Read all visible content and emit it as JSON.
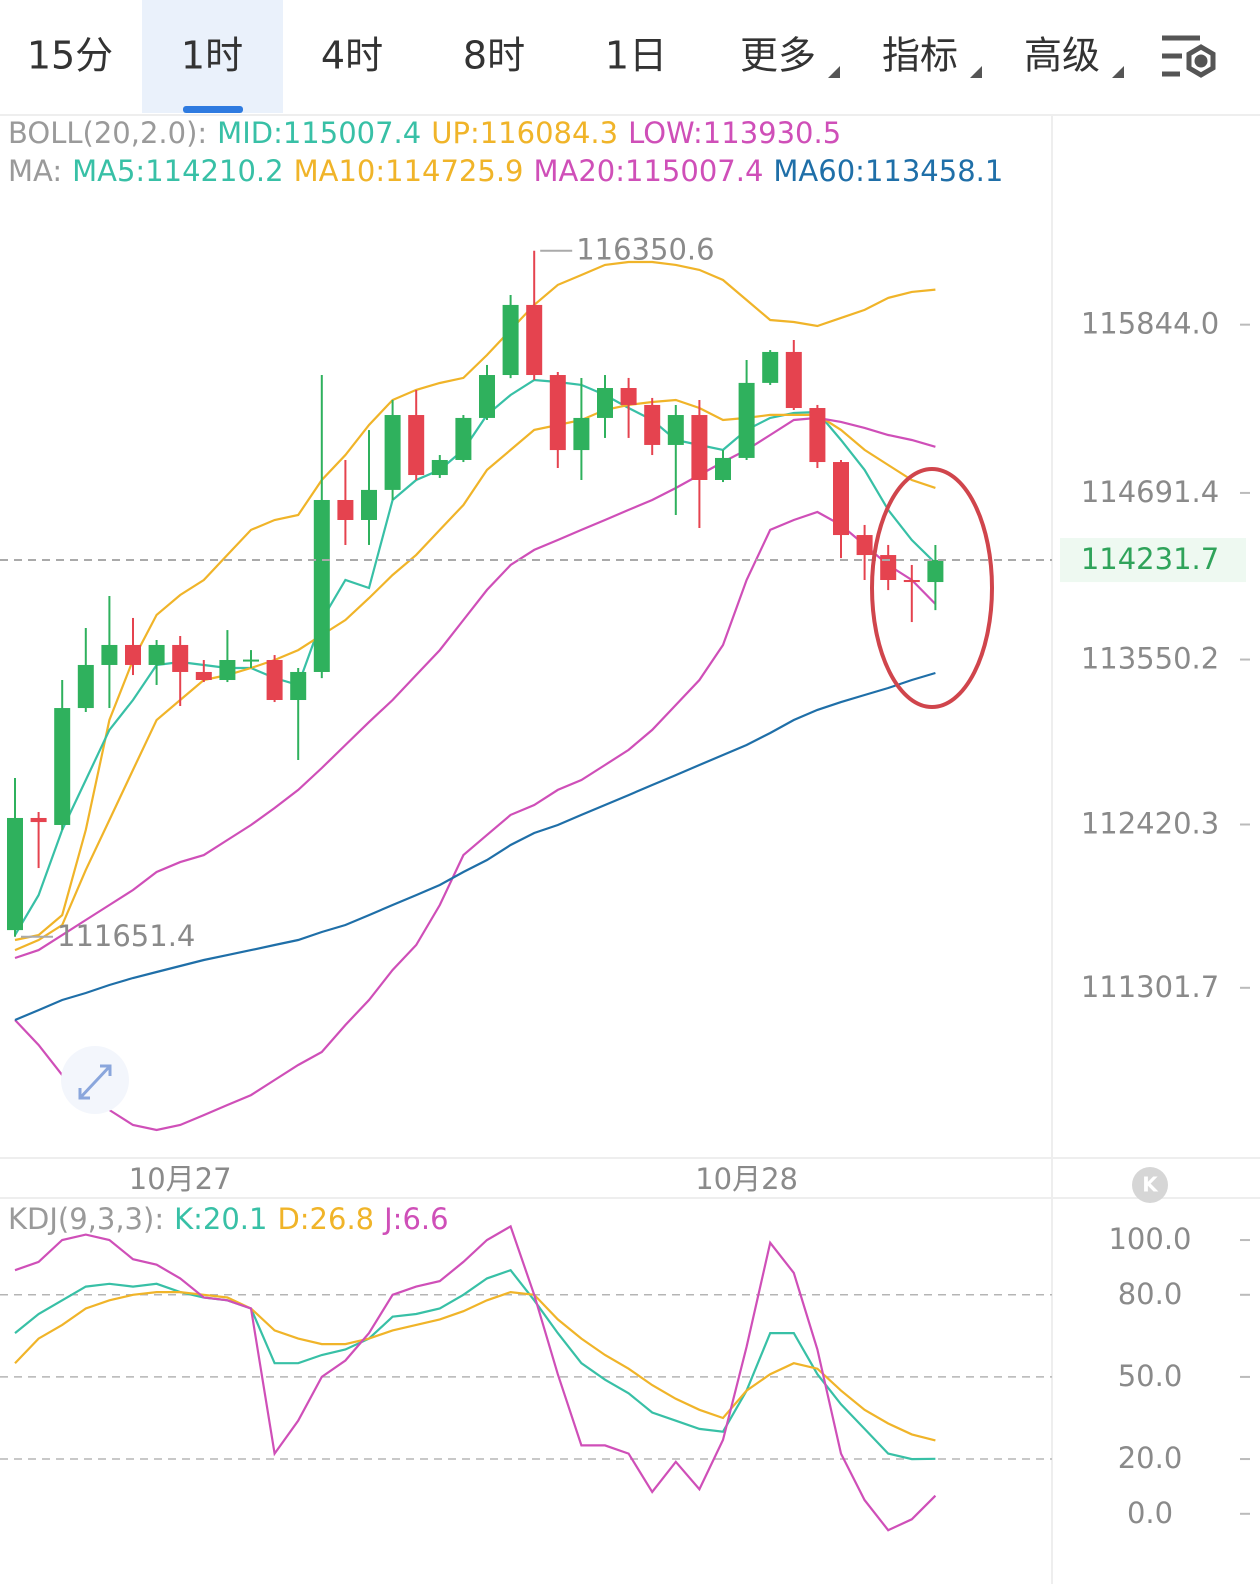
{
  "tabs": [
    {
      "label": "15分"
    },
    {
      "label": "1时",
      "selected": true
    },
    {
      "label": "4时"
    },
    {
      "label": "8时"
    },
    {
      "label": "1日"
    },
    {
      "label": "更多",
      "dropdown": true
    },
    {
      "label": "指标",
      "dropdown": true
    },
    {
      "label": "高级",
      "dropdown": true
    }
  ],
  "k_button": "K",
  "chart_data": [
    {
      "type": "candlestick",
      "categories": [
        null,
        null,
        null,
        null,
        null,
        null,
        null,
        "10月27",
        null,
        null,
        null,
        null,
        null,
        null,
        null,
        null,
        null,
        null,
        null,
        null,
        null,
        null,
        null,
        null,
        null,
        null,
        null,
        null,
        null,
        null,
        null,
        "10月28",
        null,
        null,
        null,
        null,
        null,
        null,
        null,
        null
      ],
      "open": [
        111697,
        112465,
        112417,
        113218,
        113513,
        113650,
        113513,
        113650,
        113465,
        113410,
        113540,
        113547,
        113273,
        113465,
        114643,
        114506,
        114712,
        115225,
        114814,
        114917,
        115205,
        115499,
        115979,
        115499,
        114985,
        115205,
        115410,
        115294,
        115020,
        115225,
        114780,
        114931,
        115445,
        115657,
        115273,
        114903,
        114403,
        114266,
        114095,
        114081
      ],
      "high": [
        112739,
        112506,
        113410,
        113766,
        113985,
        113835,
        113684,
        113711,
        113547,
        113752,
        113615,
        113581,
        113492,
        115499,
        114917,
        115122,
        115328,
        115396,
        114951,
        115225,
        115568,
        116047,
        116350.6,
        115520,
        115479,
        115499,
        115479,
        115342,
        115294,
        115328,
        114985,
        115602,
        115670,
        115739,
        115294,
        114917,
        114472,
        114335,
        114198,
        114335
      ],
      "low": [
        111651.4,
        112122,
        112383,
        113191,
        113218,
        113444,
        113376,
        113232,
        113396,
        113396,
        113492,
        113259,
        112862,
        113423,
        114335,
        114335,
        114643,
        114780,
        114794,
        114903,
        115191,
        115478,
        115465,
        114862,
        114780,
        115068,
        115068,
        114951,
        114540,
        114451,
        114766,
        114917,
        115431,
        115259,
        114862,
        114245,
        114095,
        114026,
        113807,
        113889
      ],
      "close": [
        112465,
        112437,
        113218,
        113513,
        113650,
        113513,
        113650,
        113465,
        113410,
        113547,
        113550,
        113273,
        113465,
        114643,
        114506,
        114712,
        115225,
        114814,
        114917,
        115205,
        115499,
        115979,
        115499,
        114985,
        115205,
        115410,
        115294,
        115020,
        115225,
        114780,
        114931,
        115445,
        115657,
        115273,
        114903,
        114403,
        114266,
        114095,
        114081,
        114231.7
      ],
      "up_color": "#2fb15d",
      "down_color": "#e5434f",
      "ylim": [
        110136,
        117280
      ],
      "yticks": [
        {
          "value": 115844,
          "label": "115844.0"
        },
        {
          "value": 114691.4,
          "label": "114691.4"
        },
        {
          "value": 113550.2,
          "label": "113550.2"
        },
        {
          "value": 112420.3,
          "label": "112420.3"
        },
        {
          "value": 111301.7,
          "label": "111301.7"
        }
      ],
      "last_price": {
        "value": 114231.7,
        "label": "114231.7",
        "color": "#2fa35a"
      },
      "annotations": [
        {
          "label": "116350.6",
          "value": 116350.6,
          "index": 22
        },
        {
          "label": "111651.4",
          "value": 111651.4,
          "index": 0
        }
      ],
      "indicators": [
        {
          "label": "BOLL(20,2.0):",
          "items": [
            {
              "name": "MID:115007.4",
              "color": "#38c0a6"
            },
            {
              "name": "UP:116084.3",
              "color": "#f0b429",
              "values": [
                111629,
                111663,
                111800,
                112383,
                113136,
                113547,
                113856,
                113992,
                114095,
                114267,
                114438,
                114506,
                114540,
                114780,
                114951,
                115157,
                115328,
                115397,
                115444,
                115479,
                115636,
                115808,
                115979,
                116116,
                116184,
                116253,
                116273,
                116273,
                116253,
                116219,
                116150,
                116013,
                115876,
                115862,
                115835,
                115890,
                115945,
                116027,
                116068,
                116084.3
              ]
            },
            {
              "name": "LOW:113930.5",
              "color": "#cf4fb8",
              "values": [
                111081,
                110910,
                110704,
                110567,
                110465,
                110362,
                110328,
                110362,
                110430,
                110499,
                110567,
                110670,
                110773,
                110862,
                111047,
                111218,
                111424,
                111595,
                111869,
                112211,
                112349,
                112486,
                112554,
                112657,
                112725,
                112828,
                112931,
                113068,
                113239,
                113410,
                113650,
                114095,
                114438,
                114506,
                114561,
                114472,
                114335,
                114198,
                114095,
                113930.5
              ]
            }
          ]
        },
        {
          "label": "MA:",
          "items": [
            {
              "name": "MA5:114210.2",
              "color": "#38c0a6",
              "values": [
                111663,
                111937,
                112383,
                112725,
                113068,
                113273,
                113513,
                113533,
                113513,
                113492,
                113492,
                113424,
                113376,
                113821,
                114095,
                114040,
                114643,
                114780,
                114849,
                114986,
                115226,
                115362,
                115465,
                115451,
                115431,
                115362,
                115273,
                115191,
                115054,
                115020,
                114986,
                115123,
                115205,
                115239,
                115246,
                115054,
                114849,
                114575,
                114369,
                114210.2
              ]
            },
            {
              "name": "MA10:114725.9",
              "color": "#f0b429",
              "values": [
                111560,
                111629,
                111732,
                112109,
                112451,
                112794,
                113136,
                113273,
                113410,
                113444,
                113492,
                113547,
                113615,
                113718,
                113821,
                113971,
                114129,
                114267,
                114438,
                114609,
                114849,
                114986,
                115123,
                115157,
                115191,
                115260,
                115294,
                115314,
                115328,
                115273,
                115191,
                115205,
                115226,
                115226,
                115226,
                115123,
                114986,
                114883,
                114780,
                114725.9
              ]
            },
            {
              "name": "MA20:115007.4",
              "color": "#cf4fb8",
              "values": [
                111506,
                111560,
                111663,
                111766,
                111869,
                111972,
                112095,
                112163,
                112211,
                112314,
                112417,
                112533,
                112657,
                112807,
                112965,
                113122,
                113273,
                113444,
                113615,
                113821,
                114027,
                114198,
                114301,
                114369,
                114438,
                114506,
                114575,
                114643,
                114725,
                114814,
                114903,
                114986,
                115088,
                115191,
                115205,
                115178,
                115137,
                115088,
                115054,
                115007.4
              ]
            },
            {
              "name": "MA60:113458.1",
              "color": "#1f6fa8",
              "values": [
                111081,
                111149,
                111218,
                111266,
                111321,
                111369,
                111410,
                111451,
                111492,
                111526,
                111560,
                111595,
                111629,
                111684,
                111732,
                111800,
                111869,
                111937,
                112006,
                112095,
                112177,
                112280,
                112362,
                112417,
                112486,
                112554,
                112622,
                112691,
                112759,
                112828,
                112896,
                112965,
                113047,
                113136,
                113205,
                113259,
                113307,
                113355,
                113410,
                113458.1
              ]
            }
          ]
        }
      ]
    },
    {
      "type": "line",
      "title": "KDJ(9,3,3):",
      "ylim": [
        -18.7,
        112.8
      ],
      "yticks": [
        {
          "value": 100,
          "label": "100.0"
        },
        {
          "value": 80,
          "label": "80.0"
        },
        {
          "value": 50,
          "label": "50.0"
        },
        {
          "value": 20,
          "label": "20.0"
        },
        {
          "value": 0,
          "label": "0.0"
        }
      ],
      "grid_values": [
        80,
        50,
        20
      ],
      "series": [
        {
          "name": "K:20.1",
          "color": "#38c0a6",
          "values": [
            66,
            73,
            78,
            83,
            84,
            83,
            84,
            81,
            79,
            78,
            75,
            55,
            55,
            58,
            60,
            64,
            72,
            73,
            75,
            80,
            86,
            89,
            78,
            66,
            55,
            49,
            44,
            37,
            34,
            31,
            30,
            45,
            66,
            66,
            51,
            40,
            31,
            22,
            20,
            20.1
          ]
        },
        {
          "name": "D:26.8",
          "color": "#f0b429",
          "values": [
            55,
            64,
            69,
            75,
            78,
            80,
            81,
            81,
            80,
            79,
            75,
            67,
            64,
            62,
            62,
            64,
            67,
            69,
            71,
            74,
            78,
            81,
            80,
            71,
            64,
            58,
            53,
            47,
            42,
            38,
            35,
            45,
            51,
            55,
            53,
            45,
            38,
            33,
            29,
            26.8
          ]
        },
        {
          "name": "J:6.6",
          "color": "#cf4fb8",
          "values": [
            89,
            92,
            100,
            102,
            100,
            93,
            91,
            86,
            79,
            78,
            75,
            22,
            34,
            50,
            56,
            66,
            80,
            83,
            85,
            92,
            100,
            105,
            80,
            51,
            25,
            25,
            22,
            8,
            19,
            9,
            27,
            61,
            99,
            88,
            60,
            22,
            5,
            -6,
            -2,
            6.6
          ]
        }
      ]
    }
  ]
}
